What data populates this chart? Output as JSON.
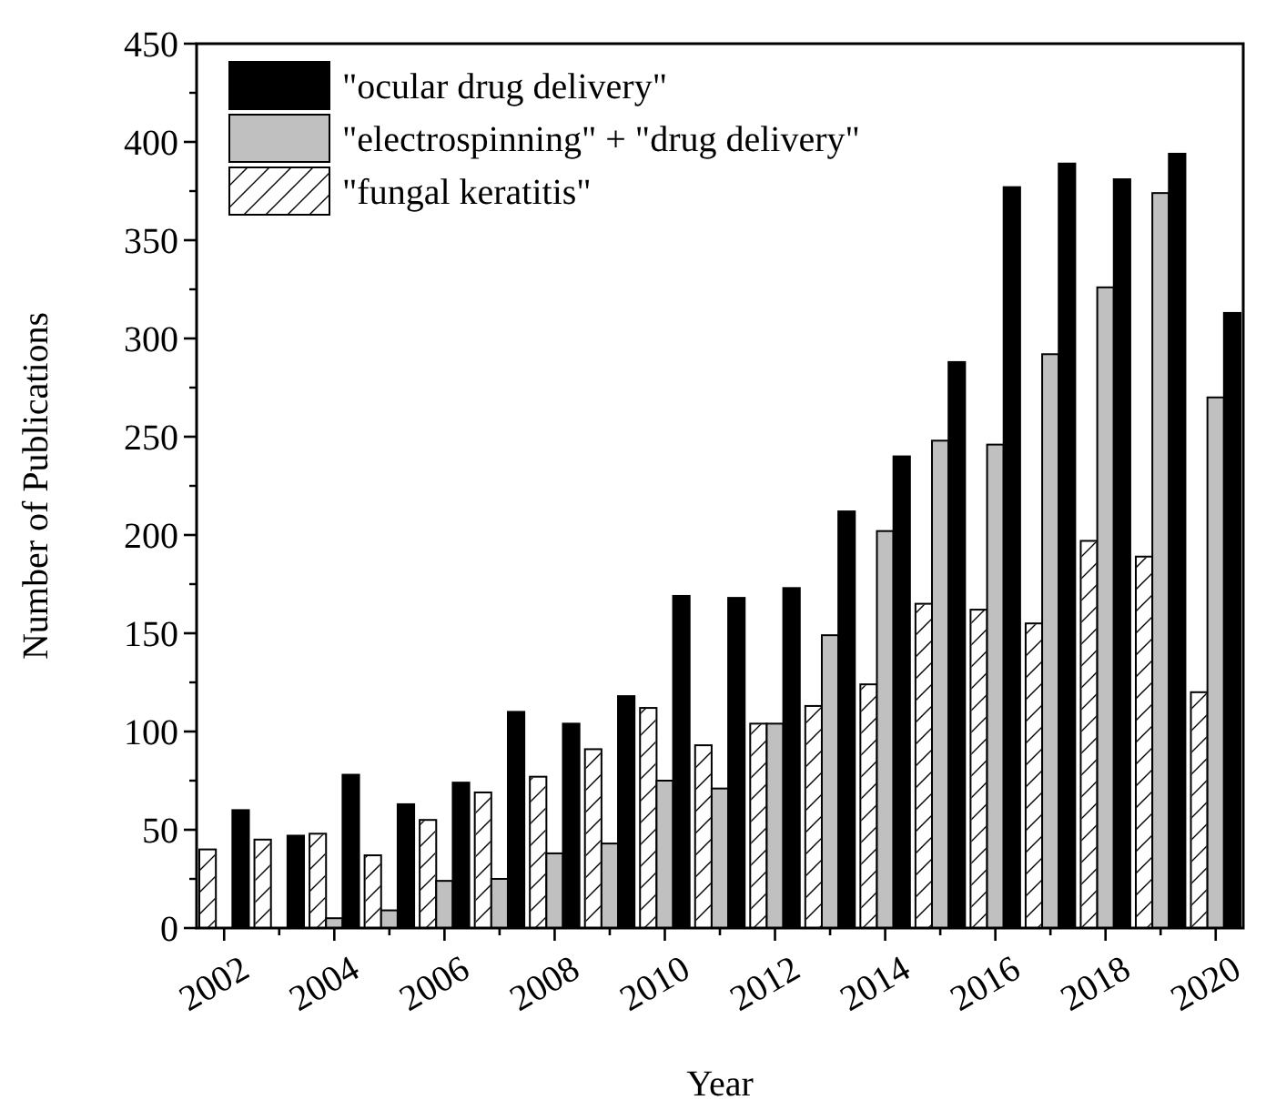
{
  "chart_data": {
    "type": "bar",
    "xlabel": "Year",
    "ylabel": "Number of Publications",
    "categories": [
      "2002",
      null,
      "2004",
      null,
      "2006",
      null,
      "2008",
      null,
      "2010",
      null,
      "2012",
      null,
      "2014",
      null,
      "2016",
      null,
      "2018",
      null,
      "2020"
    ],
    "series": [
      {
        "name": "\"fungal keratitis\"",
        "color": "#ffffff",
        "values": [
          40,
          45,
          48,
          37,
          55,
          69,
          77,
          91,
          112,
          93,
          104,
          113,
          124,
          165,
          162,
          155,
          197,
          189,
          120
        ]
      },
      {
        "name": "\"electrospinning\" + \"drug delivery\"",
        "color": "#c0c0c0",
        "values": [
          null,
          null,
          5,
          9,
          24,
          25,
          38,
          43,
          75,
          71,
          104,
          149,
          202,
          248,
          246,
          292,
          326,
          374,
          270
        ]
      },
      {
        "name": "\"ocular drug delivery\"",
        "color": "#000000",
        "values": [
          60,
          47,
          78,
          63,
          74,
          110,
          104,
          118,
          169,
          168,
          173,
          212,
          240,
          288,
          377,
          389,
          381,
          394,
          313
        ]
      }
    ],
    "ylim": [
      0,
      450
    ],
    "yticks": [
      0,
      50,
      100,
      150,
      200,
      250,
      300,
      350,
      400,
      450
    ],
    "legend": "top left"
  }
}
